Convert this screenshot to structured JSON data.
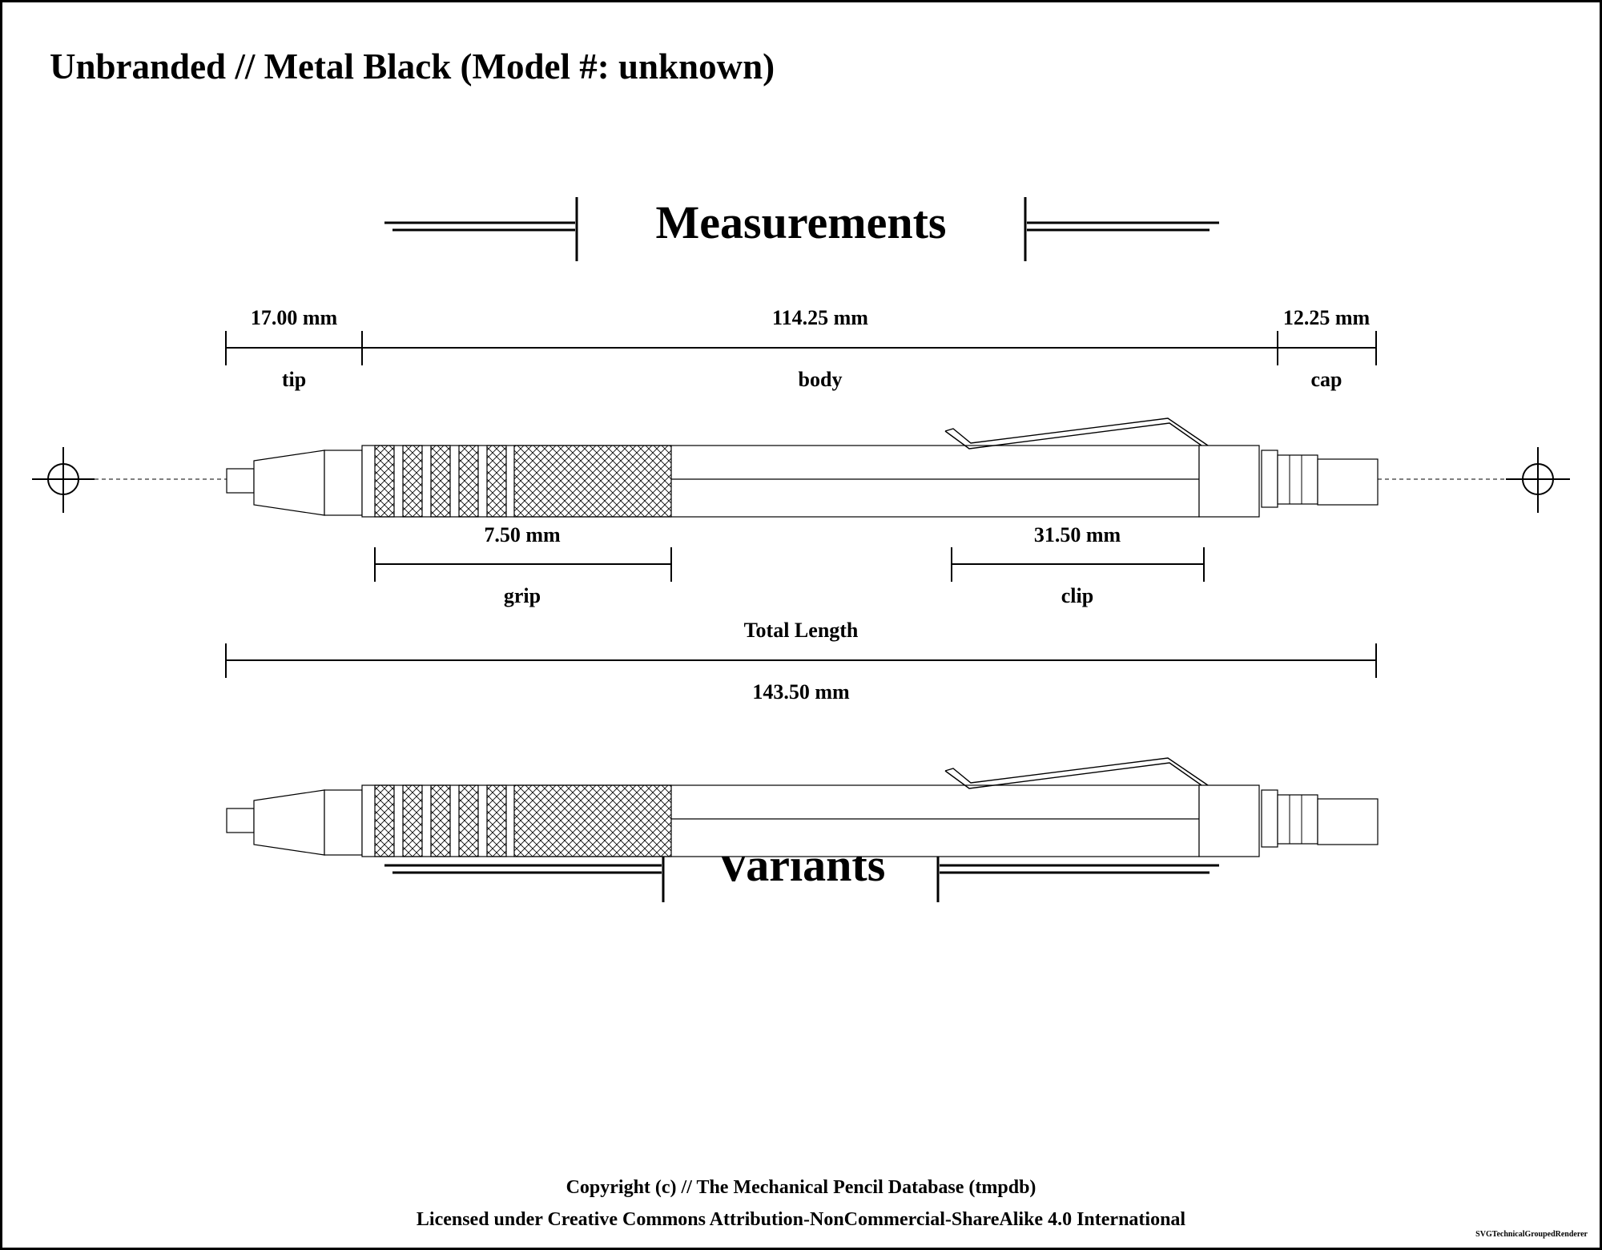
{
  "title": "Unbranded // Metal Black (Model #: unknown)",
  "sections": {
    "measurements": "Measurements",
    "variants": "Variants"
  },
  "dimensions": {
    "tip": {
      "label": "tip",
      "value": "17.00 mm"
    },
    "body": {
      "label": "body",
      "value": "114.25 mm"
    },
    "cap": {
      "label": "cap",
      "value": "12.25 mm"
    },
    "grip": {
      "label": "grip",
      "value": "7.50 mm"
    },
    "clip": {
      "label": "clip",
      "value": "31.50 mm"
    },
    "total": {
      "label": "Total Length",
      "value": "143.50 mm"
    }
  },
  "footer": {
    "copyright": "Copyright (c) // The Mechanical Pencil Database (tmpdb)",
    "license": "Licensed under Creative Commons Attribution-NonCommercial-ShareAlike 4.0 International",
    "renderer": "SVGTechnicalGroupedRenderer"
  }
}
